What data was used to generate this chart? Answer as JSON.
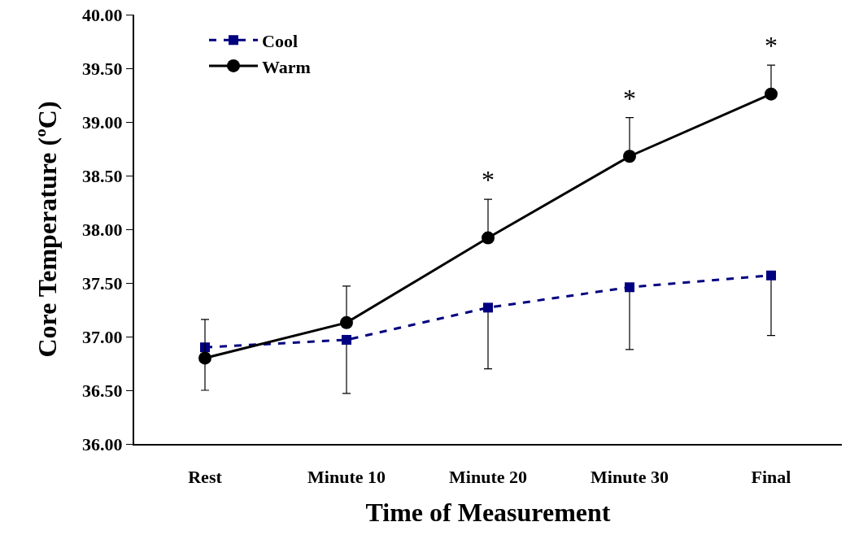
{
  "chart_data": {
    "type": "line",
    "xlabel": "Time of Measurement",
    "ylabel": "Core Temperature (ºC)",
    "categories": [
      "Rest",
      "Minute 10",
      "Minute 20",
      "Minute 30",
      "Final"
    ],
    "series": [
      {
        "name": "Cool",
        "color": "#000080",
        "values": [
          36.9,
          36.97,
          37.27,
          37.46,
          37.57
        ],
        "errors": [
          [
            36.5,
            36.9
          ],
          [
            36.47,
            36.97
          ],
          [
            36.7,
            37.27
          ],
          [
            36.88,
            37.46
          ],
          [
            37.01,
            37.57
          ]
        ],
        "marker": "square",
        "line_style": "dashed"
      },
      {
        "name": "Warm",
        "color": "#000000",
        "values": [
          36.8,
          37.13,
          37.92,
          38.68,
          39.26
        ],
        "errors": [
          [
            36.8,
            37.16
          ],
          [
            37.13,
            37.47
          ],
          [
            37.92,
            38.28
          ],
          [
            38.68,
            39.04
          ],
          [
            39.26,
            39.53
          ]
        ],
        "marker": "circle",
        "line_style": "solid"
      }
    ],
    "ylim": [
      36,
      40
    ],
    "yticks": [
      {
        "value": 36,
        "label": "36.00"
      },
      {
        "value": 36.5,
        "label": "36.50"
      },
      {
        "value": 37,
        "label": "37.00"
      },
      {
        "value": 37.5,
        "label": "37.50"
      },
      {
        "value": 38,
        "label": "38.00"
      },
      {
        "value": 38.5,
        "label": "38.50"
      },
      {
        "value": 39,
        "label": "39.00"
      },
      {
        "value": 39.5,
        "label": "39.50"
      },
      {
        "value": 40,
        "label": "40.00"
      }
    ],
    "annotations": [
      "*",
      "*",
      "*"
    ],
    "grid": false,
    "legend": "top left"
  }
}
